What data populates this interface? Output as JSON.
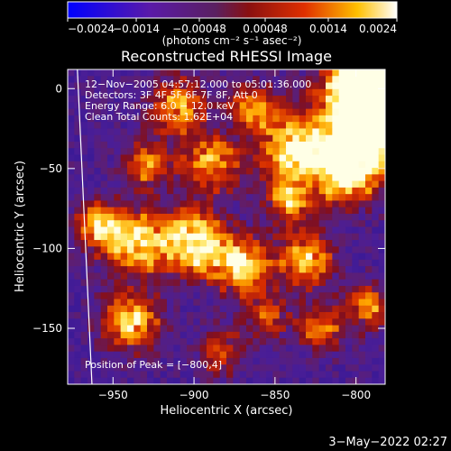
{
  "chart_data": {
    "type": "heatmap",
    "title": "Reconstructed RHESSI Image",
    "xlabel": "Heliocentric X (arcsec)",
    "ylabel": "Heliocentric Y (arcsec)",
    "xlim": [
      -978,
      -782
    ],
    "ylim": [
      -185,
      12
    ],
    "x_ticks": [
      {
        "value": -950,
        "label": "−950"
      },
      {
        "value": -900,
        "label": "−900"
      },
      {
        "value": -850,
        "label": "−850"
      },
      {
        "value": -800,
        "label": "−800"
      }
    ],
    "y_ticks": [
      {
        "value": 0,
        "label": "0"
      },
      {
        "value": -50,
        "label": "−50"
      },
      {
        "value": -100,
        "label": "−100"
      },
      {
        "value": -150,
        "label": "−150"
      }
    ],
    "colorbar": {
      "title": "(photons cm⁻² s⁻¹ asec⁻²)",
      "range": [
        -0.0024,
        0.0024
      ],
      "colormap": "blue-purple-red-yellow-white",
      "ticks": [
        {
          "value": -0.0024,
          "label": "−0.0024"
        },
        {
          "value": -0.0014,
          "label": "−0.0014"
        },
        {
          "value": -0.00048,
          "label": "−0.00048"
        },
        {
          "value": 0.00048,
          "label": "0.00048"
        },
        {
          "value": 0.0014,
          "label": "0.0014"
        },
        {
          "value": 0.0024,
          "label": "0.0024"
        }
      ]
    },
    "info_lines": [
      "12−Nov−2005 04:57:12.000 to 05:01:36.000",
      "Detectors: 3F 4F 5F 6F 7F 8F, Att 0",
      "Energy Range: 6.0 − 12.0 keV",
      "Clean     Total Counts: 1.62E+04"
    ],
    "peak_label": "Position of Peak = [−800,4]",
    "peak_position": [
      -800,
      4
    ],
    "limb_line": [
      [
        -972,
        12
      ],
      [
        -963,
        -185
      ]
    ]
  },
  "footer": {
    "timestamp": "3−May−2022 02:27"
  }
}
